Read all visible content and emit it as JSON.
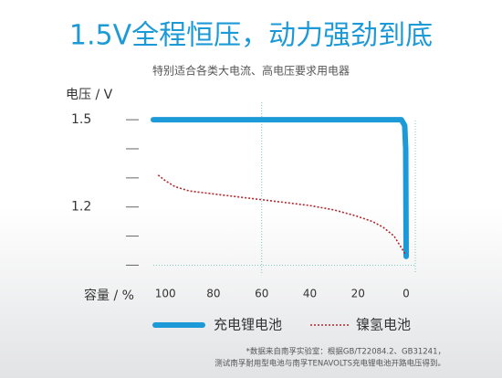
{
  "chart_data": {
    "type": "line",
    "title": "1.5V全程恒压，动力强劲到底",
    "subtitle": "特别适合各类大电流、高电压要求用电器",
    "y_label": "电压 / V",
    "x_label": "容量 / %",
    "xlim": [
      105,
      0
    ],
    "xticks": [
      100,
      80,
      60,
      40,
      20,
      0
    ],
    "ylim": [
      0.97,
      1.56
    ],
    "yticks": [
      1.5,
      1.2
    ],
    "minor_yticks": [
      1.4,
      1.3,
      1.1,
      1.0
    ],
    "grid": true,
    "legend": "bottom",
    "series": [
      {
        "name": "充电锂电池",
        "color": "#1c9ad8",
        "x": [
          105,
          2,
          0.6,
          0.2,
          0
        ],
        "values": [
          1.5,
          1.5,
          1.48,
          1.4,
          1.03
        ]
      },
      {
        "name": "镍氢电池",
        "color": "#b0272d",
        "x": [
          103,
          100,
          96,
          90,
          80,
          70,
          60,
          50,
          40,
          30,
          21,
          14,
          9.5,
          5,
          2,
          0.5
        ],
        "values": [
          1.31,
          1.29,
          1.27,
          1.255,
          1.245,
          1.235,
          1.225,
          1.215,
          1.205,
          1.19,
          1.17,
          1.15,
          1.13,
          1.1,
          1.06,
          1.04
        ]
      }
    ],
    "notes": [
      "*数据来自南孚实验室：根据GB/T22084.2、GB31241，",
      "测试南孚耐用型电池与南孚TENAVOLTS充电锂电池开路电压得到。"
    ]
  }
}
